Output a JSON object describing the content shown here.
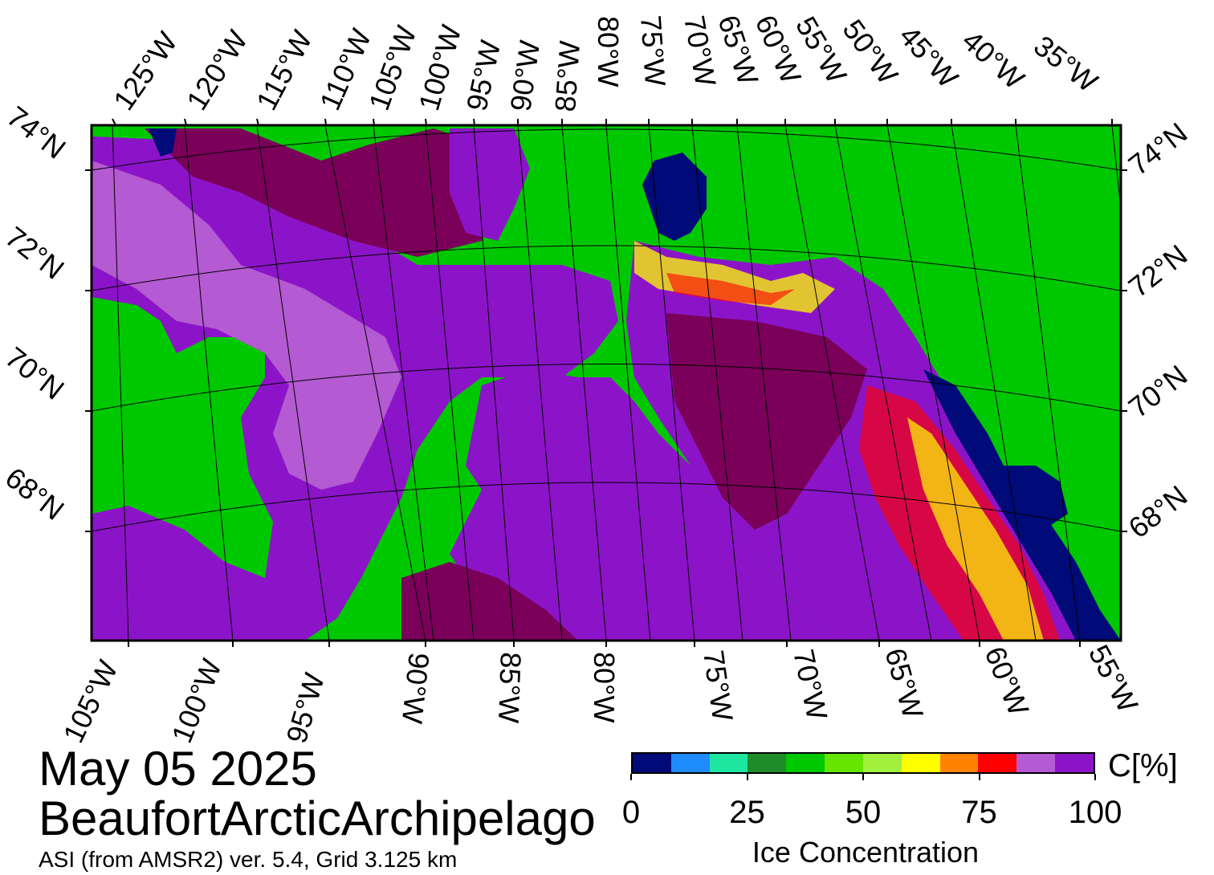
{
  "map": {
    "top_longitude_labels": [
      "125°W",
      "120°W",
      "115°W",
      "110°W",
      "105°W",
      "100°W",
      "95°W",
      "90°W",
      "85°W",
      "80°W",
      "75°W",
      "70°W",
      "65°W",
      "60°W",
      "55°W",
      "50°W",
      "45°W",
      "40°W",
      "35°W"
    ],
    "bottom_longitude_labels": [
      "105°W",
      "100°W",
      "95°W",
      "90°W",
      "85°W",
      "80°W",
      "75°W",
      "70°W",
      "65°W",
      "60°W",
      "55°W"
    ],
    "left_latitude_labels": [
      "74°N",
      "72°N",
      "70°N",
      "68°N"
    ],
    "right_latitude_labels": [
      "74°N",
      "72°N",
      "70°N",
      "68°N"
    ],
    "colors": {
      "land": "#00c800",
      "ice_100": "#7a005a",
      "ice_95": "#8c14c8",
      "ice_90": "#b45ad2",
      "ice_85": "#ff0000",
      "ice_80": "#ff8200",
      "ice_75": "#ffff00",
      "water": "#000a78"
    }
  },
  "caption": {
    "date": "May 05 2025",
    "region": "BeaufortArcticArchipelago",
    "product": "ASI (from AMSR2) ver. 5.4,  Grid 3.125 km"
  },
  "colorbar": {
    "unit": "C[%]",
    "title": "Ice Concentration",
    "tick_labels": [
      "0",
      "25",
      "50",
      "75",
      "100"
    ],
    "tick_values": [
      0,
      25,
      50,
      75,
      100
    ],
    "range": [
      0,
      100
    ],
    "segment_colors": [
      "#000a78",
      "#1e8cff",
      "#1ee6a0",
      "#1e8c28",
      "#00c800",
      "#64e600",
      "#a0f03c",
      "#ffff00",
      "#ff8200",
      "#ff0000",
      "#b45ad2",
      "#8c14c8"
    ]
  }
}
